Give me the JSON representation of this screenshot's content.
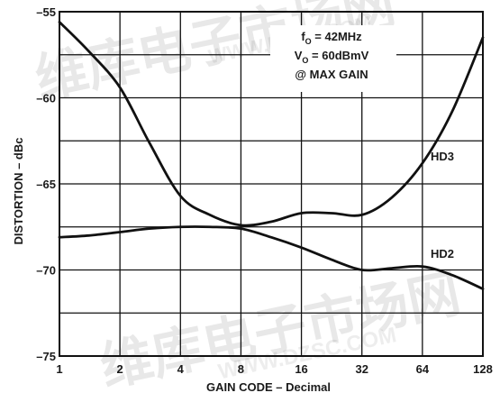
{
  "colors": {
    "background": "#ffffff",
    "grid": "#111111",
    "frame": "#111111",
    "curve": "#111111",
    "text": "#1a1a1a",
    "watermark": "#e53935"
  },
  "watermark": {
    "chinese": "维库电子市场网",
    "url": "WWW.DZSC.COM"
  },
  "chart_data": {
    "type": "line",
    "xlabel": "GAIN CODE – Decimal",
    "ylabel": "DISTORTION – dBc",
    "xscale": "log2",
    "xlim": [
      1,
      128
    ],
    "ylim": [
      -75,
      -55
    ],
    "xticks": [
      1,
      2,
      4,
      8,
      16,
      32,
      64,
      128
    ],
    "xtick_labels": [
      "1",
      "2",
      "4",
      "8",
      "16",
      "32",
      "64",
      "128"
    ],
    "yticks": [
      -55,
      -60,
      -65,
      -70,
      -75
    ],
    "ytick_labels": [
      "–55",
      "–60",
      "–65",
      "–70",
      "–75"
    ],
    "grid": true,
    "annotation_lines": [
      {
        "main": "f",
        "sub": "O",
        "rest": " = 42MHz"
      },
      {
        "main": "V",
        "sub": "O",
        "rest": " = 60dBmV"
      },
      {
        "main": "@ MAX GAIN",
        "sub": "",
        "rest": ""
      }
    ],
    "series": [
      {
        "name": "HD3",
        "x": [
          1,
          1.4,
          2,
          2.8,
          4,
          5.6,
          8,
          11.3,
          16,
          22.6,
          32,
          45,
          64,
          90,
          128
        ],
        "y": [
          -55.6,
          -57.3,
          -59.4,
          -62.6,
          -65.7,
          -66.8,
          -67.4,
          -67.2,
          -66.7,
          -66.7,
          -66.8,
          -65.8,
          -63.8,
          -60.8,
          -56.5
        ]
      },
      {
        "name": "HD2",
        "x": [
          1,
          1.4,
          2,
          2.8,
          4,
          5.6,
          8,
          11.3,
          16,
          22.6,
          32,
          45,
          64,
          90,
          128
        ],
        "y": [
          -68.1,
          -68.0,
          -67.8,
          -67.6,
          -67.5,
          -67.5,
          -67.6,
          -68.1,
          -68.7,
          -69.4,
          -70.0,
          -69.9,
          -69.8,
          -70.3,
          -71.1
        ]
      }
    ]
  }
}
